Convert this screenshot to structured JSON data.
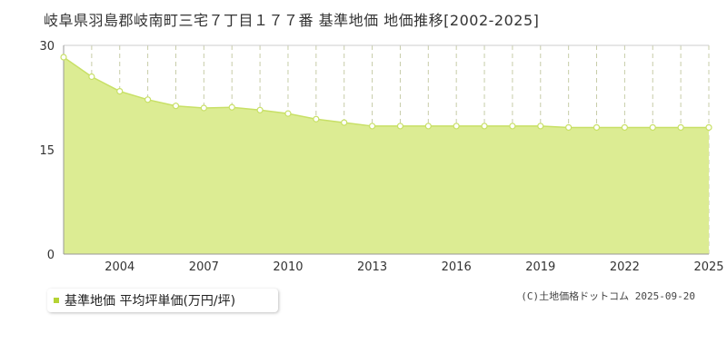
{
  "title": "岐阜県羽島郡岐南町三宅７丁目１７７番 基準地価 地価推移[2002-2025]",
  "legend": {
    "label": "基準地価 平均坪単価(万円/坪)"
  },
  "credit": "(C)土地価格ドットコム 2025-09-20",
  "colors": {
    "fill": "#dcec93",
    "line": "#c8e066",
    "marker_fill": "#ffffff",
    "grid_solid": "#cccccc",
    "grid_dash": "#c7cca8",
    "axis": "#999999",
    "legend_swatch": "#b5d334"
  },
  "chart_data": {
    "type": "area",
    "title": "岐阜県羽島郡岐南町三宅７丁目１７７番 基準地価 地価推移[2002-2025]",
    "xlabel": "",
    "ylabel": "",
    "x": [
      2002,
      2003,
      2004,
      2005,
      2006,
      2007,
      2008,
      2009,
      2010,
      2011,
      2012,
      2013,
      2014,
      2015,
      2016,
      2017,
      2018,
      2019,
      2020,
      2021,
      2022,
      2023,
      2024,
      2025
    ],
    "series": [
      {
        "name": "基準地価 平均坪単価(万円/坪)",
        "values": [
          28.3,
          25.5,
          23.4,
          22.2,
          21.3,
          21.0,
          21.1,
          20.7,
          20.2,
          19.4,
          18.9,
          18.4,
          18.4,
          18.4,
          18.4,
          18.4,
          18.4,
          18.4,
          18.2,
          18.2,
          18.2,
          18.2,
          18.2,
          18.2
        ]
      }
    ],
    "ylim": [
      0,
      30
    ],
    "yticks": [
      "0",
      "15",
      "30"
    ],
    "xticks": [
      "2004",
      "2007",
      "2010",
      "2013",
      "2016",
      "2019",
      "2022",
      "2025"
    ],
    "grid": true,
    "legend_position": "bottom-left"
  }
}
